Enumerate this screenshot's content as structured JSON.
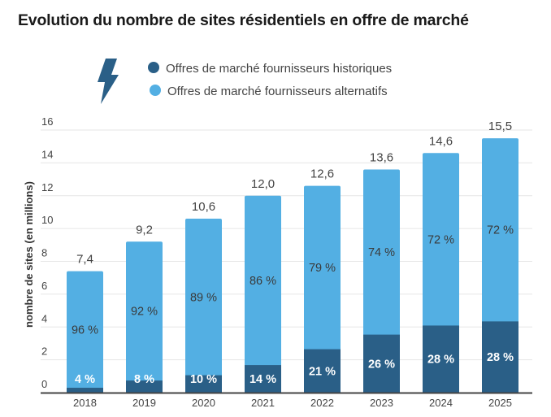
{
  "title": "Evolution du nombre de sites résidentiels en offre de marché",
  "legend_icon": "lightning-bolt-icon",
  "colors": {
    "historiques": "#2a5f87",
    "alternatifs": "#53afe3",
    "grid": "#e6e6e6",
    "axis": "#444444"
  },
  "chart_data": {
    "type": "bar",
    "stacked": true,
    "title": "Evolution du nombre de sites résidentiels en offre de marché",
    "xlabel": "",
    "ylabel": "nombre de sites (en millions)",
    "ylim": [
      0,
      16
    ],
    "yticks": [
      0,
      2,
      4,
      6,
      8,
      10,
      12,
      14,
      16
    ],
    "grid": true,
    "legend_position": "top",
    "categories": [
      "2018",
      "2019",
      "2020",
      "2021",
      "2022",
      "2023",
      "2024",
      "2025"
    ],
    "totals": [
      7.4,
      9.2,
      10.6,
      12.0,
      12.6,
      13.6,
      14.6,
      15.5
    ],
    "total_labels": [
      "7,4",
      "9,2",
      "10,6",
      "12,0",
      "12,6",
      "13,6",
      "14,6",
      "15,5"
    ],
    "series": [
      {
        "name": "Offres de marché fournisseurs historiques",
        "percent": [
          4,
          8,
          10,
          14,
          21,
          26,
          28,
          28
        ],
        "labels": [
          "4 %",
          "8 %",
          "10 %",
          "14 %",
          "21 %",
          "26 %",
          "28 %",
          "28 %"
        ]
      },
      {
        "name": "Offres de marché fournisseurs alternatifs",
        "percent": [
          96,
          92,
          89,
          86,
          79,
          74,
          72,
          72
        ],
        "labels": [
          "96 %",
          "92 %",
          "89 %",
          "86 %",
          "79 %",
          "74 %",
          "72 %",
          "72 %"
        ]
      }
    ]
  }
}
